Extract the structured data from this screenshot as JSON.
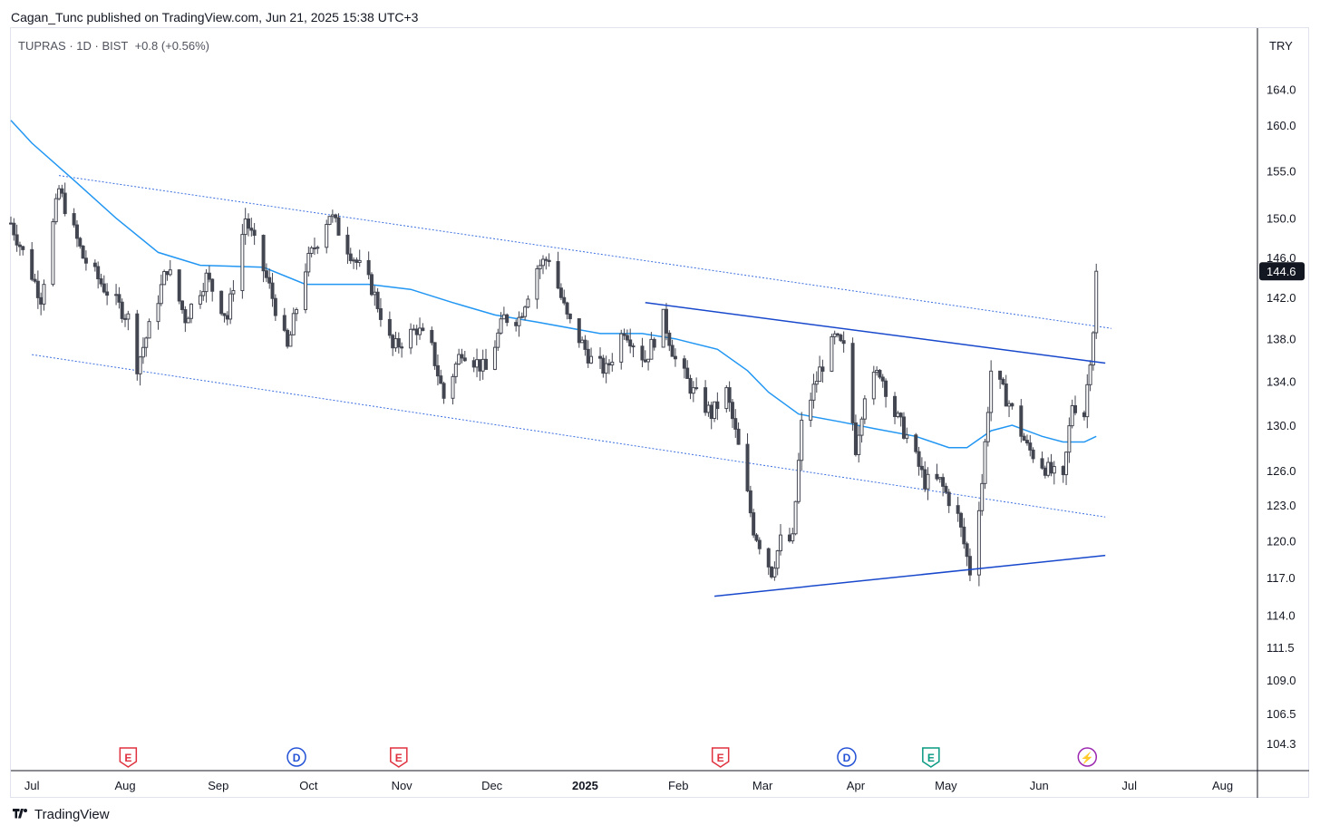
{
  "header": {
    "publisher_line": "Cagan_Tunc published on TradingView.com, Jun 21, 2025 15:38 UTC+3"
  },
  "legend": {
    "symbol": "TUPRAS · 1D · BIST",
    "change": "+0.8 (+0.56%)"
  },
  "price_axis": {
    "currency": "TRY",
    "last_price_label": "144.6",
    "last_price_bg": "#131722"
  },
  "footer": {
    "brand": "TradingView"
  },
  "colors": {
    "candle": "#434651",
    "ma": "#2196f3",
    "trendline": "#1848cc",
    "channel": "#3e70e0",
    "earnings": "#e0313e",
    "dividend": "#2452d6",
    "earnings_future": "#089981",
    "split": "#9c27b0"
  },
  "chart_data": {
    "type": "candlestick",
    "ticker": "TUPRAS",
    "interval": "1D",
    "exchange": "BIST",
    "y_ticks": [
      "164.0",
      "160.0",
      "155.0",
      "150.0",
      "146.0",
      "142.0",
      "138.0",
      "134.0",
      "130.0",
      "126.0",
      "123.0",
      "120.0",
      "117.0",
      "114.0",
      "111.5",
      "109.0",
      "106.5",
      "104.3"
    ],
    "y_scale": "log",
    "ylim": [
      102.5,
      168.0
    ],
    "x_ticks": [
      {
        "label": "Jul",
        "date": "2024-07-01",
        "bold": false
      },
      {
        "label": "Aug",
        "date": "2024-08-01",
        "bold": false
      },
      {
        "label": "Sep",
        "date": "2024-09-01",
        "bold": false
      },
      {
        "label": "Oct",
        "date": "2024-10-01",
        "bold": false
      },
      {
        "label": "Nov",
        "date": "2024-11-01",
        "bold": false
      },
      {
        "label": "Dec",
        "date": "2024-12-01",
        "bold": false
      },
      {
        "label": "2025",
        "date": "2025-01-01",
        "bold": true
      },
      {
        "label": "Feb",
        "date": "2025-02-01",
        "bold": false
      },
      {
        "label": "Mar",
        "date": "2025-03-01",
        "bold": false
      },
      {
        "label": "Apr",
        "date": "2025-04-01",
        "bold": false
      },
      {
        "label": "May",
        "date": "2025-05-01",
        "bold": false
      },
      {
        "label": "Jun",
        "date": "2025-06-01",
        "bold": false
      },
      {
        "label": "Jul",
        "date": "2025-07-01",
        "bold": false
      },
      {
        "label": "Aug",
        "date": "2025-08-01",
        "bold": false
      }
    ],
    "xlim": [
      "2024-06-24",
      "2025-08-12"
    ],
    "last_price": 144.6,
    "anchors": [
      [
        "2024-06-24",
        149.5
      ],
      [
        "2024-07-04",
        142
      ],
      [
        "2024-07-10",
        153
      ],
      [
        "2024-07-18",
        146
      ],
      [
        "2024-07-25",
        143
      ],
      [
        "2024-08-02",
        140
      ],
      [
        "2024-08-05",
        135.5
      ],
      [
        "2024-08-09",
        139
      ],
      [
        "2024-08-15",
        145
      ],
      [
        "2024-08-21",
        140
      ],
      [
        "2024-08-28",
        144
      ],
      [
        "2024-09-04",
        140
      ],
      [
        "2024-09-10",
        150
      ],
      [
        "2024-09-18",
        143
      ],
      [
        "2024-09-24",
        137
      ],
      [
        "2024-09-30",
        145
      ],
      [
        "2024-10-08",
        150.5
      ],
      [
        "2024-10-14",
        147
      ],
      [
        "2024-10-22",
        143
      ],
      [
        "2024-10-29",
        137
      ],
      [
        "2024-11-06",
        139
      ],
      [
        "2024-11-11",
        137
      ],
      [
        "2024-11-15",
        132.5
      ],
      [
        "2024-11-21",
        137
      ],
      [
        "2024-11-29",
        135
      ],
      [
        "2024-12-05",
        140
      ],
      [
        "2024-12-10",
        140
      ],
      [
        "2024-12-16",
        145
      ],
      [
        "2024-12-20",
        146
      ],
      [
        "2024-12-26",
        140
      ],
      [
        "2025-01-03",
        136
      ],
      [
        "2025-01-08",
        135
      ],
      [
        "2025-01-14",
        139
      ],
      [
        "2025-01-21",
        136
      ],
      [
        "2025-01-27",
        140
      ],
      [
        "2025-01-31",
        136
      ],
      [
        "2025-02-06",
        133
      ],
      [
        "2025-02-12",
        131
      ],
      [
        "2025-02-17",
        133
      ],
      [
        "2025-02-21",
        128
      ],
      [
        "2025-02-26",
        121
      ],
      [
        "2025-03-04",
        117.5
      ],
      [
        "2025-03-07",
        120
      ],
      [
        "2025-03-11",
        120
      ],
      [
        "2025-03-14",
        130
      ],
      [
        "2025-03-20",
        135
      ],
      [
        "2025-03-25",
        138
      ],
      [
        "2025-03-28",
        137
      ],
      [
        "2025-04-01",
        128
      ],
      [
        "2025-04-04",
        133
      ],
      [
        "2025-04-09",
        135
      ],
      [
        "2025-04-14",
        131
      ],
      [
        "2025-04-18",
        129
      ],
      [
        "2025-04-24",
        125
      ],
      [
        "2025-04-29",
        125
      ],
      [
        "2025-05-05",
        122
      ],
      [
        "2025-05-09",
        117.5
      ],
      [
        "2025-05-13",
        125
      ],
      [
        "2025-05-16",
        135
      ],
      [
        "2025-05-22",
        132
      ],
      [
        "2025-05-28",
        128
      ],
      [
        "2025-06-04",
        126
      ],
      [
        "2025-06-09",
        125
      ],
      [
        "2025-06-12",
        132
      ],
      [
        "2025-06-16",
        131
      ],
      [
        "2025-06-19",
        139
      ],
      [
        "2025-06-20",
        144.6
      ]
    ],
    "moving_average": [
      [
        "2024-06-24",
        160.5
      ],
      [
        "2024-07-01",
        158
      ],
      [
        "2024-07-15",
        154
      ],
      [
        "2024-07-29",
        150
      ],
      [
        "2024-08-12",
        146.5
      ],
      [
        "2024-08-26",
        145.2
      ],
      [
        "2024-09-16",
        145
      ],
      [
        "2024-09-30",
        143.3
      ],
      [
        "2024-10-21",
        143.3
      ],
      [
        "2024-11-04",
        142.8
      ],
      [
        "2024-11-18",
        141.5
      ],
      [
        "2024-12-02",
        140.3
      ],
      [
        "2024-12-16",
        139.6
      ],
      [
        "2025-01-06",
        138.5
      ],
      [
        "2025-01-20",
        138.5
      ],
      [
        "2025-01-31",
        138
      ],
      [
        "2025-02-14",
        137
      ],
      [
        "2025-02-24",
        135
      ],
      [
        "2025-03-03",
        133
      ],
      [
        "2025-03-13",
        131
      ],
      [
        "2025-03-27",
        130.3
      ],
      [
        "2025-04-07",
        129.7
      ],
      [
        "2025-04-21",
        129
      ],
      [
        "2025-05-02",
        128
      ],
      [
        "2025-05-08",
        128
      ],
      [
        "2025-05-16",
        129.5
      ],
      [
        "2025-05-23",
        130
      ],
      [
        "2025-06-02",
        129
      ],
      [
        "2025-06-09",
        128.5
      ],
      [
        "2025-06-16",
        128.5
      ],
      [
        "2025-06-20",
        129
      ]
    ],
    "trendlines": [
      {
        "style": "solid",
        "from": [
          "2025-01-21",
          141.5
        ],
        "to": [
          "2025-06-23",
          135.7
        ]
      },
      {
        "style": "solid",
        "from": [
          "2025-02-13",
          115.5
        ],
        "to": [
          "2025-06-23",
          118.8
        ]
      },
      {
        "style": "dotted",
        "from": [
          "2024-07-10",
          154.5
        ],
        "to": [
          "2025-06-25",
          139
        ]
      },
      {
        "style": "dotted",
        "from": [
          "2024-07-01",
          136.5
        ],
        "to": [
          "2025-06-23",
          122
        ]
      }
    ],
    "events": [
      {
        "letter": "E",
        "kind": "earnings",
        "date": "2024-08-02"
      },
      {
        "letter": "D",
        "kind": "dividend",
        "date": "2024-09-27"
      },
      {
        "letter": "E",
        "kind": "earnings",
        "date": "2024-10-31"
      },
      {
        "letter": "E",
        "kind": "earnings",
        "date": "2025-02-15"
      },
      {
        "letter": "D",
        "kind": "dividend",
        "date": "2025-03-29"
      },
      {
        "letter": "E",
        "kind": "earnings_future",
        "date": "2025-04-26"
      },
      {
        "letter": "⚡",
        "kind": "split",
        "date": "2025-06-17"
      }
    ]
  }
}
